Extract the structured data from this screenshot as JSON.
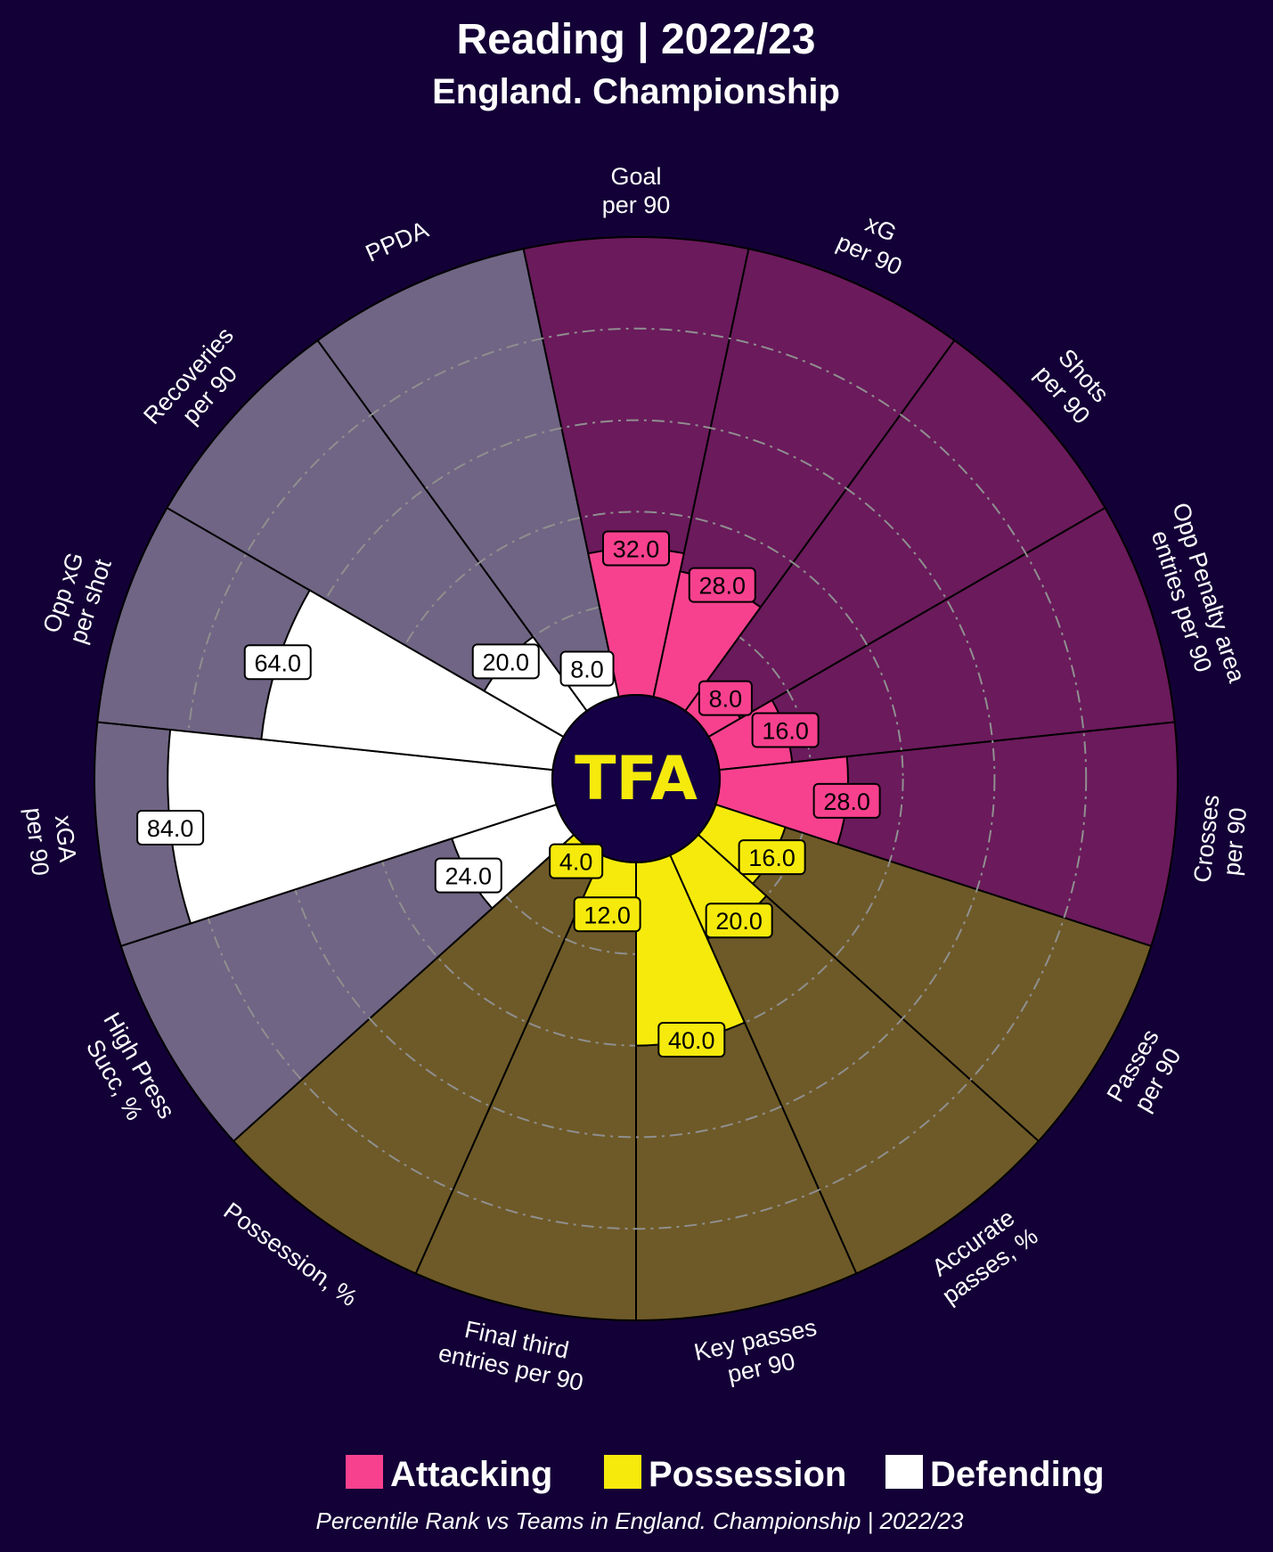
{
  "title": "Reading | 2022/23",
  "subtitle": "England. Championship",
  "logo": "TFA",
  "footer": "Percentile Rank vs Teams in England. Championship | 2022/23",
  "colors": {
    "background": "#130036",
    "Attacking": {
      "bar": "#f7418f",
      "bg": "#6b1a5c"
    },
    "Possession": {
      "bar": "#f5ea0c",
      "bg": "#6e5a28"
    },
    "Defending": {
      "bar": "#ffffff",
      "bg": "#706584"
    },
    "grid": "#8f8f8f",
    "logo": "#f5ea0c"
  },
  "chart_data": {
    "type": "pie",
    "subtype": "radar-pizza",
    "title": "Reading | 2022/23",
    "range": [
      0,
      100
    ],
    "gridlines": [
      20,
      40,
      60,
      80
    ],
    "legend": [
      {
        "label": "Attacking"
      },
      {
        "label": "Possession"
      },
      {
        "label": "Defending"
      }
    ],
    "params": [
      {
        "label": [
          "Goal",
          "per 90"
        ],
        "value": 32.0,
        "group": "Attacking"
      },
      {
        "label": [
          "xG",
          "per 90"
        ],
        "value": 28.0,
        "group": "Attacking"
      },
      {
        "label": [
          "Shots",
          "per 90"
        ],
        "value": 8.0,
        "group": "Attacking"
      },
      {
        "label": [
          "Opp Penalty area",
          "entries per 90"
        ],
        "value": 16.0,
        "group": "Attacking"
      },
      {
        "label": [
          "Crosses",
          "per 90"
        ],
        "value": 28.0,
        "group": "Attacking"
      },
      {
        "label": [
          "Passes",
          "per 90"
        ],
        "value": 16.0,
        "group": "Possession"
      },
      {
        "label": [
          "Accurate",
          "passes, %"
        ],
        "value": 20.0,
        "group": "Possession"
      },
      {
        "label": [
          "Key passes",
          "per 90"
        ],
        "value": 40.0,
        "group": "Possession"
      },
      {
        "label": [
          "Final third",
          "entries per 90"
        ],
        "value": 12.0,
        "group": "Possession"
      },
      {
        "label": [
          "Possession, %"
        ],
        "value": 4.0,
        "group": "Possession"
      },
      {
        "label": [
          "High Press",
          "Succ, %"
        ],
        "value": 24.0,
        "group": "Defending"
      },
      {
        "label": [
          "xGA",
          "per 90"
        ],
        "value": 84.0,
        "group": "Defending"
      },
      {
        "label": [
          "Opp xG",
          "per shot"
        ],
        "value": 64.0,
        "group": "Defending"
      },
      {
        "label": [
          "Recoveries",
          "per 90"
        ],
        "value": 20.0,
        "group": "Defending"
      },
      {
        "label": [
          "PPDA"
        ],
        "value": 8.0,
        "group": "Defending"
      }
    ]
  }
}
